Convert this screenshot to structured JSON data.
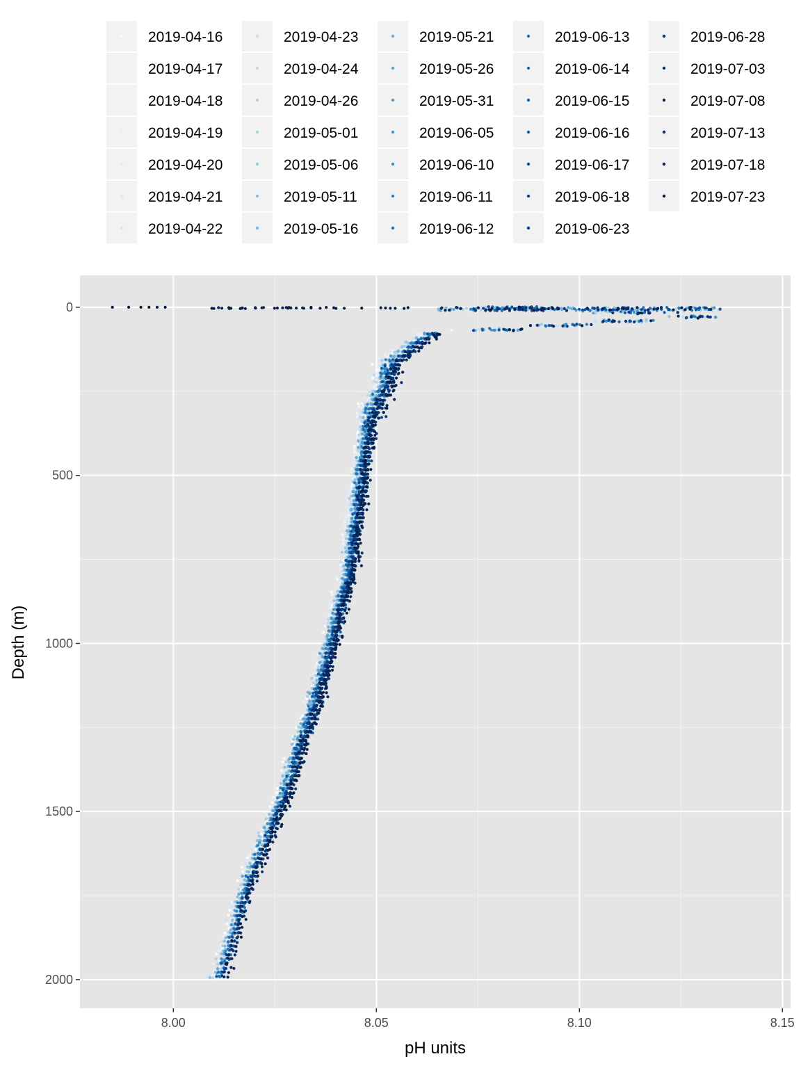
{
  "chart_data": {
    "type": "scatter",
    "title": "",
    "xlabel": "pH units",
    "ylabel": "Depth (m)",
    "xlim": [
      7.977,
      8.152
    ],
    "ylim": [
      2085,
      -95
    ],
    "y_reversed": true,
    "x_ticks": [
      8.0,
      8.05,
      8.1,
      8.15
    ],
    "x_tick_labels": [
      "8.00",
      "8.05",
      "8.10",
      "8.15"
    ],
    "y_ticks": [
      0,
      500,
      1000,
      1500,
      2000
    ],
    "y_tick_labels": [
      "0",
      "500",
      "1000",
      "1500",
      "2000"
    ],
    "grid": true,
    "panel_background": "#e5e5e5",
    "legend_position": "top",
    "color_scale": "sequential blues (light to dark by date)",
    "series": [
      {
        "name": "2019-04-16",
        "color": "#f7fbff"
      },
      {
        "name": "2019-04-17",
        "color": "#f1f7fd"
      },
      {
        "name": "2019-04-18",
        "color": "#ebf3fb"
      },
      {
        "name": "2019-04-19",
        "color": "#e5eff9"
      },
      {
        "name": "2019-04-20",
        "color": "#dfebf7"
      },
      {
        "name": "2019-04-21",
        "color": "#d9e7f5"
      },
      {
        "name": "2019-04-22",
        "color": "#d1e2f3"
      },
      {
        "name": "2019-04-23",
        "color": "#c9ddf0"
      },
      {
        "name": "2019-04-24",
        "color": "#bfd8ed"
      },
      {
        "name": "2019-04-26",
        "color": "#b4d3e9"
      },
      {
        "name": "2019-05-01",
        "color": "#a8cee4"
      },
      {
        "name": "2019-05-06",
        "color": "#9ac8e0"
      },
      {
        "name": "2019-05-11",
        "color": "#8cc0dd"
      },
      {
        "name": "2019-05-16",
        "color": "#7db8da"
      },
      {
        "name": "2019-05-21",
        "color": "#6fb0d7"
      },
      {
        "name": "2019-05-26",
        "color": "#61a7d2"
      },
      {
        "name": "2019-05-31",
        "color": "#549fcd"
      },
      {
        "name": "2019-06-05",
        "color": "#4896c8"
      },
      {
        "name": "2019-06-10",
        "color": "#3d8dc3"
      },
      {
        "name": "2019-06-11",
        "color": "#3383be"
      },
      {
        "name": "2019-06-12",
        "color": "#2979b9"
      },
      {
        "name": "2019-06-13",
        "color": "#2070b4"
      },
      {
        "name": "2019-06-14",
        "color": "#1967ad"
      },
      {
        "name": "2019-06-15",
        "color": "#135fa7"
      },
      {
        "name": "2019-06-16",
        "color": "#0e56a0"
      },
      {
        "name": "2019-06-17",
        "color": "#0a4e98"
      },
      {
        "name": "2019-06-18",
        "color": "#08468f"
      },
      {
        "name": "2019-06-23",
        "color": "#083e85"
      },
      {
        "name": "2019-06-28",
        "color": "#08377b"
      },
      {
        "name": "2019-07-03",
        "color": "#083071"
      },
      {
        "name": "2019-07-08",
        "color": "#082b66"
      },
      {
        "name": "2019-07-13",
        "color": "#08275c"
      },
      {
        "name": "2019-07-18",
        "color": "#082352"
      },
      {
        "name": "2019-07-23",
        "color": "#081f48"
      }
    ],
    "profile": {
      "description": "approximate depth profile shared by all casts",
      "shallow": [
        [
          0,
          8.08
        ],
        [
          25,
          8.132
        ],
        [
          50,
          8.1
        ],
        [
          80,
          8.063
        ],
        [
          120,
          8.058
        ],
        [
          170,
          8.053
        ],
        [
          230,
          8.052
        ],
        [
          290,
          8.049
        ],
        [
          340,
          8.048
        ]
      ],
      "deep": [
        [
          350,
          8.048
        ],
        [
          500,
          8.046
        ],
        [
          600,
          8.045
        ],
        [
          700,
          8.044
        ],
        [
          800,
          8.043
        ],
        [
          900,
          8.0405
        ],
        [
          1000,
          8.0385
        ],
        [
          1100,
          8.0365
        ],
        [
          1200,
          8.034
        ],
        [
          1300,
          8.031
        ],
        [
          1400,
          8.0285
        ],
        [
          1500,
          8.0255
        ],
        [
          1600,
          8.022
        ],
        [
          1700,
          8.0185
        ],
        [
          1800,
          8.016
        ],
        [
          1900,
          8.0135
        ],
        [
          2000,
          8.011
        ]
      ],
      "surface_outliers": [
        [
          0,
          7.985
        ],
        [
          0,
          7.989
        ],
        [
          0,
          7.992
        ],
        [
          0,
          7.994
        ],
        [
          0,
          7.996
        ],
        [
          0,
          7.998
        ]
      ]
    }
  }
}
